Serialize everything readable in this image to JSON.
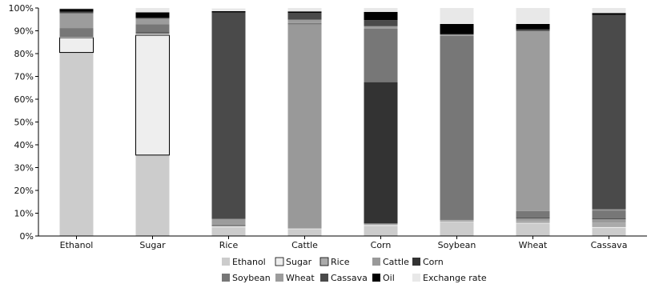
{
  "chart_data": {
    "type": "bar",
    "stacked": true,
    "normalized": true,
    "title": "",
    "xlabel": "",
    "ylabel": "",
    "ylim": [
      0,
      100
    ],
    "yticks": [
      0,
      10,
      20,
      30,
      40,
      50,
      60,
      70,
      80,
      90,
      100
    ],
    "ytick_labels": [
      "0%",
      "10%",
      "20%",
      "30%",
      "40%",
      "50%",
      "60%",
      "70%",
      "80%",
      "90%",
      "100%"
    ],
    "categories": [
      "Ethanol",
      "Sugar",
      "Rice",
      "Cattle",
      "Corn",
      "Soybean",
      "Wheat",
      "Cassava"
    ],
    "series": [
      {
        "name": "Ethanol",
        "color": "#cccccc",
        "values": [
          80.5,
          35.5,
          3.8,
          3.0,
          4.5,
          6.0,
          5.5,
          3.5
        ]
      },
      {
        "name": "Sugar",
        "color": "#eeeeee",
        "values": [
          6.5,
          52.5,
          0.3,
          0.2,
          0.3,
          0.2,
          0.2,
          0.4
        ]
      },
      {
        "name": "Rice",
        "color": "#aaaaaa",
        "values": [
          0.3,
          0.5,
          0.2,
          0.2,
          0.2,
          0.7,
          1.0,
          2.0
        ]
      },
      {
        "name": "Cattle",
        "color": "#999999",
        "values": [
          0.2,
          0.5,
          0.2,
          89.5,
          0.5,
          0.2,
          1.0,
          1.5
        ]
      },
      {
        "name": "Corn",
        "color": "#333333",
        "values": [
          0.2,
          0.3,
          0.2,
          0.2,
          62.0,
          0.2,
          0.2,
          0.3
        ]
      },
      {
        "name": "Soybean",
        "color": "#777777",
        "values": [
          3.5,
          3.5,
          0.3,
          0.3,
          23.5,
          80.5,
          3.0,
          3.5
        ]
      },
      {
        "name": "Wheat",
        "color": "#9c9c9c",
        "values": [
          6.5,
          2.5,
          2.5,
          1.5,
          1.0,
          0.5,
          79.0,
          0.5
        ]
      },
      {
        "name": "Cassava",
        "color": "#4a4a4a",
        "values": [
          0.7,
          0.4,
          90.5,
          3.0,
          2.7,
          0.2,
          0.7,
          85.3
        ]
      },
      {
        "name": "Oil",
        "color": "#000000",
        "values": [
          1.2,
          2.4,
          0.6,
          0.6,
          3.6,
          4.5,
          2.4,
          0.8
        ]
      },
      {
        "name": "Exchange rate",
        "color": "#e8e8e8",
        "values": [
          0.4,
          1.9,
          1.2,
          1.5,
          1.7,
          7.0,
          7.0,
          2.2
        ]
      }
    ],
    "legend": {
      "placement": "bottom-center",
      "rows": [
        [
          "Ethanol",
          "Sugar",
          "Rice",
          "Cattle",
          "Corn"
        ],
        [
          "Soybean",
          "Wheat",
          "Cassava",
          "Oil",
          "Exchange rate"
        ]
      ]
    },
    "grid": false
  }
}
